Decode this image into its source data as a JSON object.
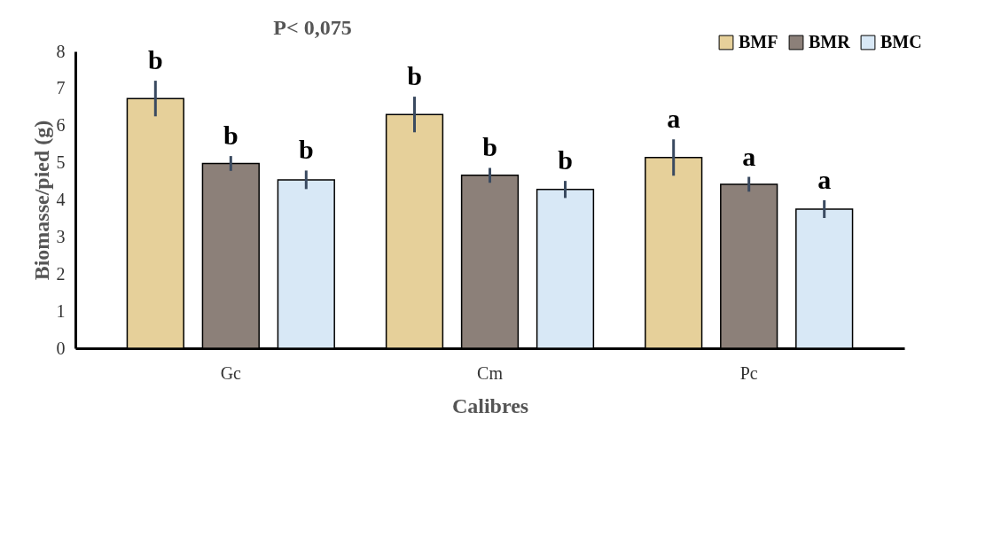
{
  "chart_data": {
    "type": "bar",
    "title": "P< 0,075",
    "xlabel": "Calibres",
    "ylabel": "Biomasse/pied (g)",
    "categories": [
      "Gc",
      "Cm",
      "Pc"
    ],
    "series": [
      {
        "name": "BMF",
        "color": "#e6d09a",
        "values": [
          6.73,
          6.3,
          5.14
        ],
        "errors": [
          0.48,
          0.48,
          0.49
        ],
        "value_labels": [
          "b",
          "b",
          "a"
        ]
      },
      {
        "name": "BMR",
        "color": "#8c8079",
        "values": [
          4.98,
          4.66,
          4.42
        ],
        "errors": [
          0.2,
          0.2,
          0.2
        ],
        "value_labels": [
          "b",
          "b",
          "a"
        ]
      },
      {
        "name": "BMC",
        "color": "#d8e8f6",
        "values": [
          4.54,
          4.28,
          3.75
        ],
        "errors": [
          0.25,
          0.23,
          0.24
        ],
        "value_labels": [
          "b",
          "b",
          "a"
        ]
      }
    ],
    "ylim": [
      0,
      8
    ],
    "yticks": [
      0,
      1,
      2,
      3,
      4,
      5,
      6,
      7,
      8
    ],
    "grid": false,
    "legend": "top right"
  }
}
